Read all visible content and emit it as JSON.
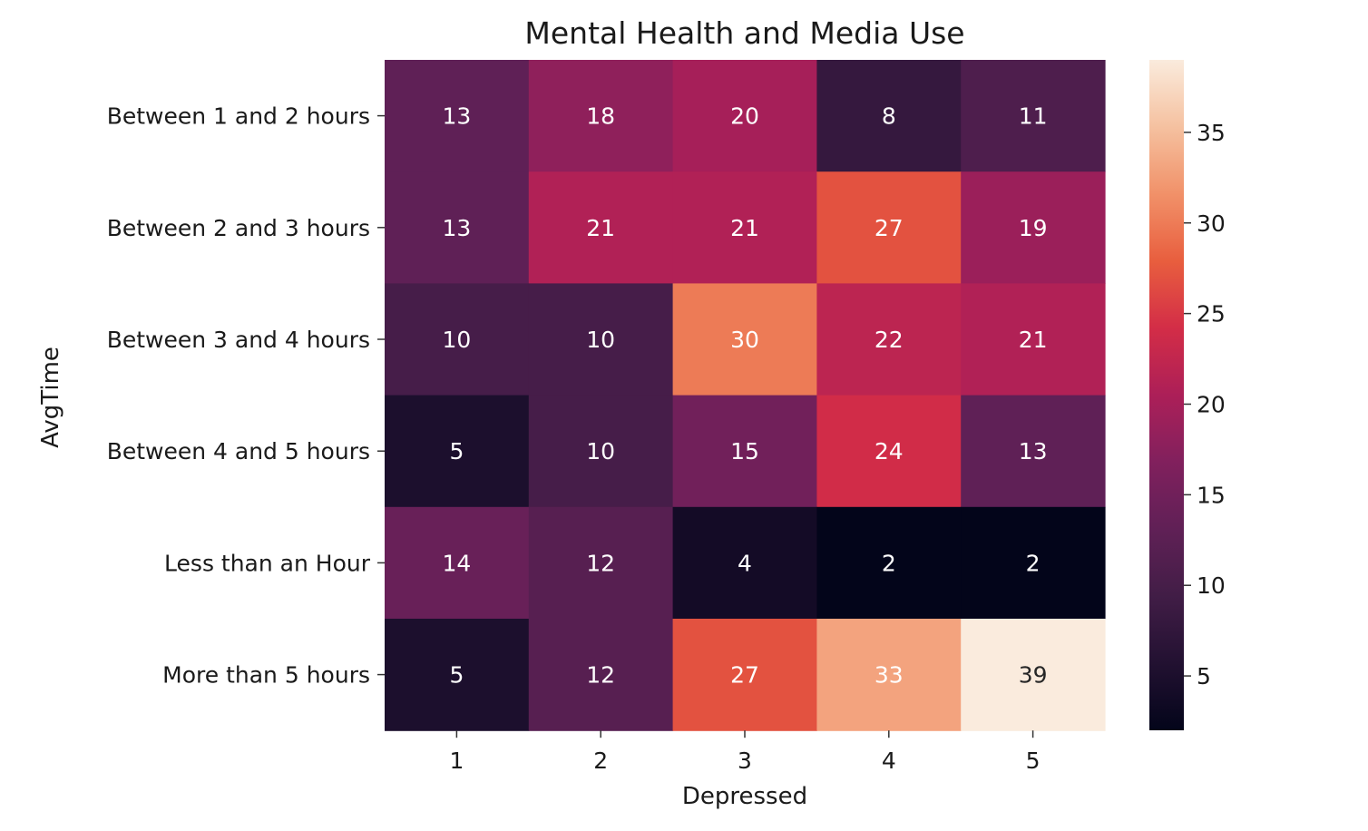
{
  "chart_data": {
    "type": "heatmap",
    "title": "Mental Health and Media Use",
    "xlabel": "Depressed",
    "ylabel": "AvgTime",
    "x_categories": [
      "1",
      "2",
      "3",
      "4",
      "5"
    ],
    "y_categories": [
      "Between 1 and 2 hours",
      "Between 2 and 3 hours",
      "Between 3 and 4 hours",
      "Between 4 and 5 hours",
      "Less than an Hour",
      "More than 5 hours"
    ],
    "values": [
      [
        13,
        18,
        20,
        8,
        11
      ],
      [
        13,
        21,
        21,
        27,
        19
      ],
      [
        10,
        10,
        30,
        22,
        21
      ],
      [
        5,
        10,
        15,
        24,
        13
      ],
      [
        14,
        12,
        4,
        2,
        2
      ],
      [
        5,
        12,
        27,
        33,
        39
      ]
    ],
    "colorbar": {
      "min": 2,
      "max": 39,
      "ticks": [
        5,
        10,
        15,
        20,
        25,
        30,
        35
      ],
      "colormap": "rocket"
    },
    "annotation_color_dark_threshold": 0.6
  }
}
